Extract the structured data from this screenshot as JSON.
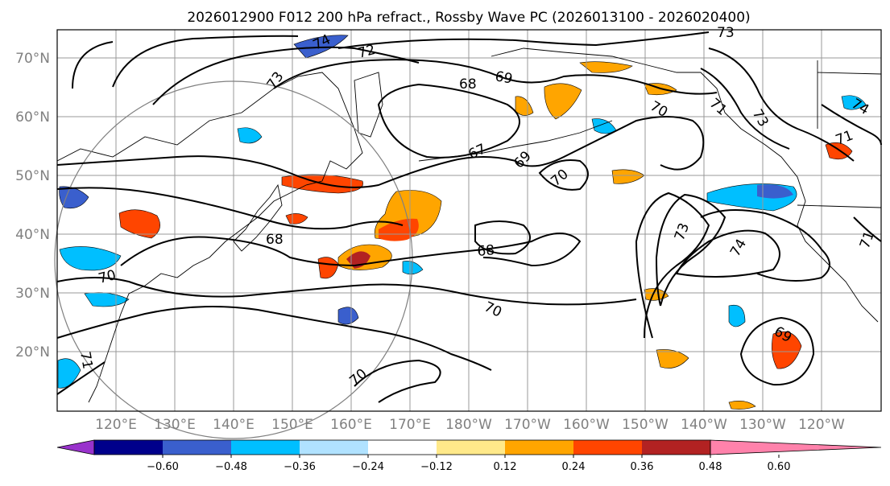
{
  "title": "2026012900 F012 200 hPa refract., Rossby Wave PC (2026013100 - 2026020400)",
  "map": {
    "lat_labels": [
      "70°N",
      "60°N",
      "50°N",
      "40°N",
      "30°N",
      "20°N"
    ],
    "lon_labels": [
      "120°E",
      "130°E",
      "140°E",
      "150°E",
      "160°E",
      "170°E",
      "180°W",
      "170°W",
      "160°W",
      "150°W",
      "140°W",
      "130°W",
      "120°W"
    ],
    "contour_labels": [
      "74",
      "72",
      "73",
      "73",
      "68",
      "69",
      "70",
      "71",
      "73",
      "67",
      "69",
      "70",
      "71",
      "68",
      "68",
      "70",
      "70",
      "70",
      "71",
      "73",
      "74",
      "69",
      "74",
      "71"
    ],
    "gridline_color": "#999999",
    "coast_color": "#000000"
  },
  "colorbar": {
    "colors": [
      "#9932cc",
      "#00008b",
      "#3a5fcd",
      "#00bfff",
      "#b0e2ff",
      "#ffffff",
      "#ffe98a",
      "#ffa500",
      "#ff4500",
      "#b22222",
      "#ff82ab"
    ],
    "ticks": [
      "−0.60",
      "−0.48",
      "−0.36",
      "−0.24",
      "−0.12",
      "0.12",
      "0.24",
      "0.36",
      "0.48",
      "0.60"
    ]
  }
}
